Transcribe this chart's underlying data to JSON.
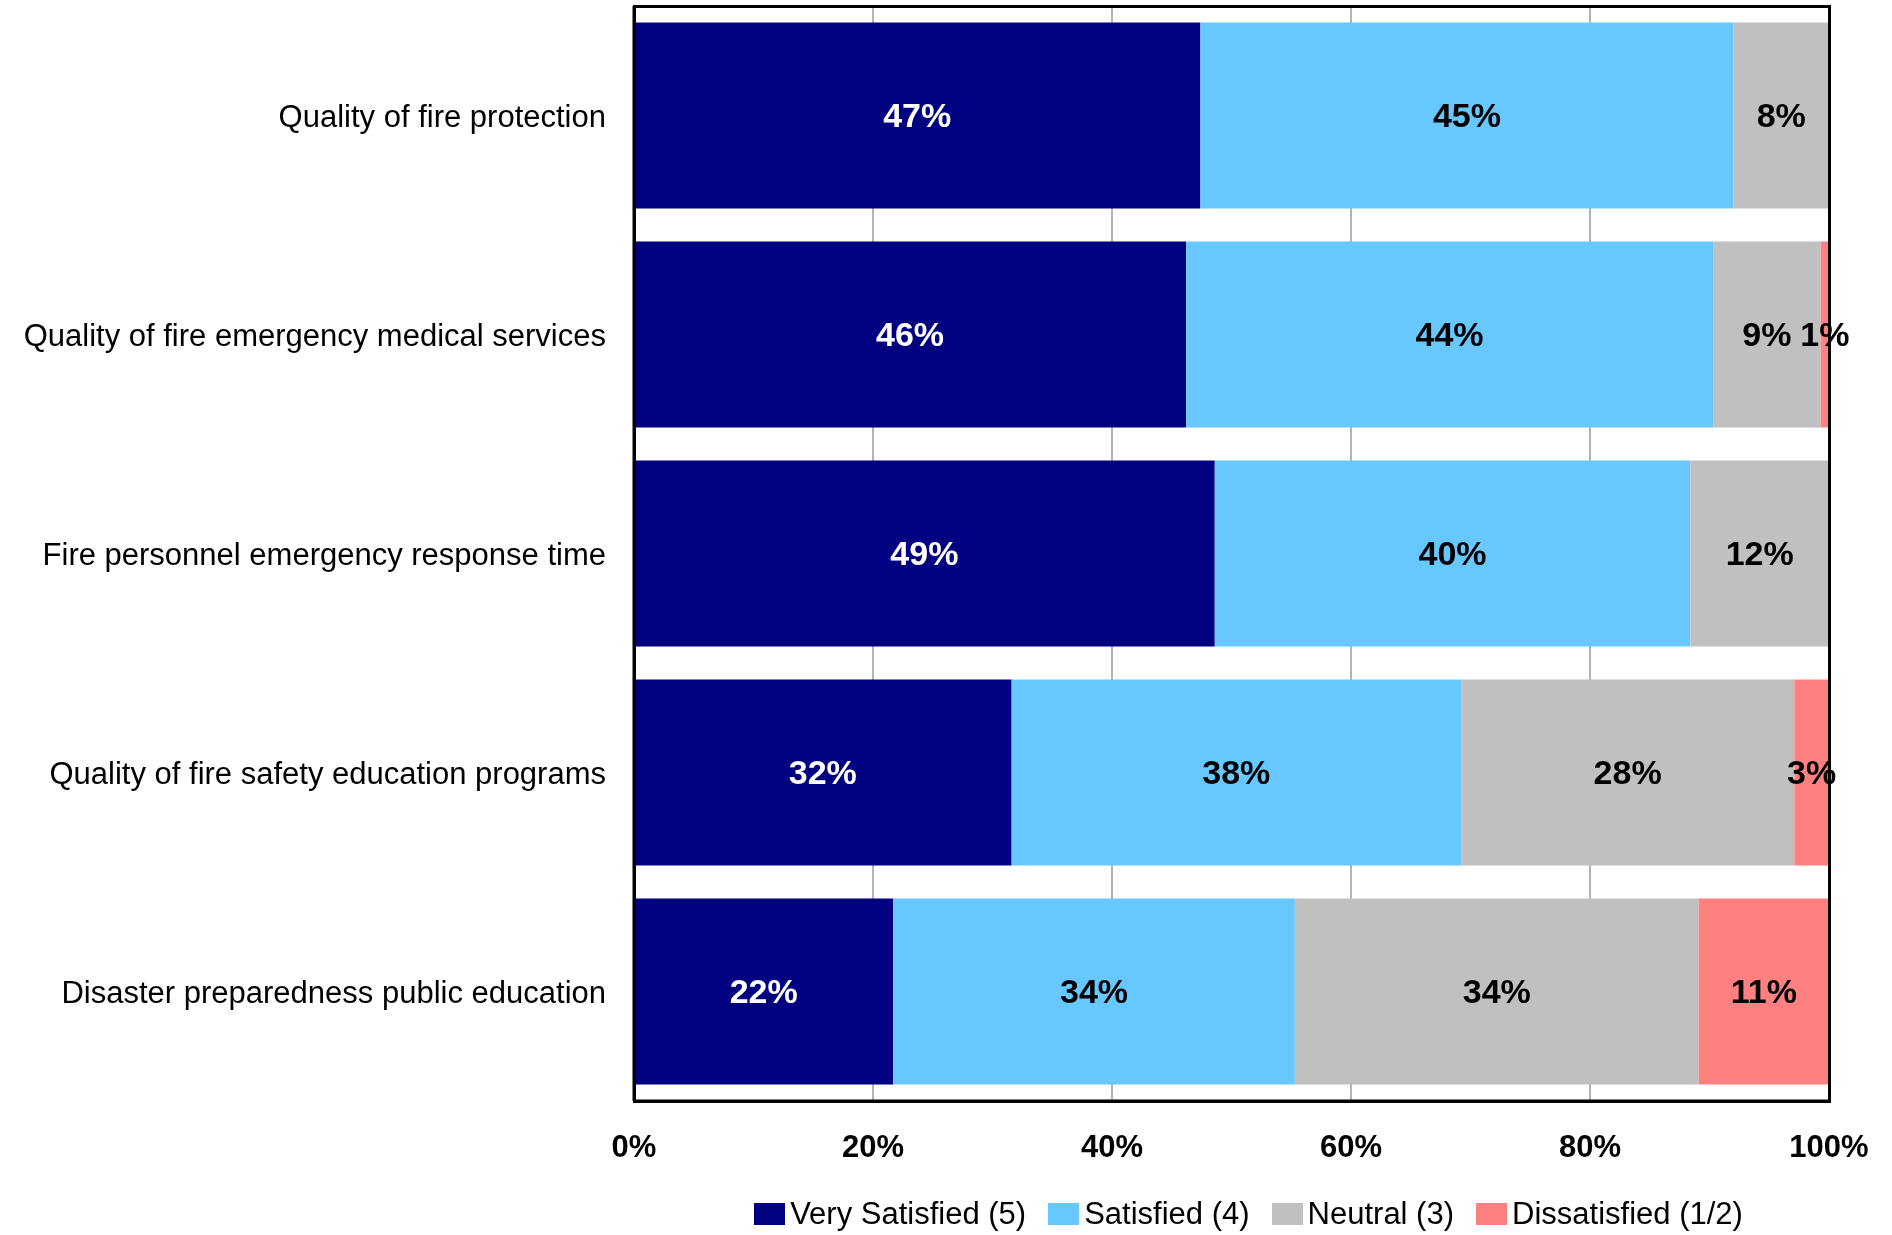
{
  "chart_data": {
    "type": "bar",
    "orientation": "horizontal",
    "stacked": true,
    "categories": [
      "Quality of fire protection",
      "Quality of fire emergency medical services",
      "Fire personnel emergency response time",
      "Quality of fire safety education programs",
      "Disaster preparedness public education"
    ],
    "series": [
      {
        "name": "Very Satisfied (5)",
        "color": "#000080",
        "values": [
          47.4,
          46.2,
          48.6,
          31.6,
          21.7
        ],
        "value_labels": [
          "47%",
          "46%",
          "49%",
          "32%",
          "22%"
        ]
      },
      {
        "name": "Satisfied (4)",
        "color": "#66c8ff",
        "values": [
          44.6,
          44.1,
          39.8,
          37.6,
          33.6
        ],
        "value_labels": [
          "45%",
          "44%",
          "40%",
          "38%",
          "34%"
        ]
      },
      {
        "name": "Neutral (3)",
        "color": "#c0c0c0",
        "values": [
          8.0,
          9.0,
          11.6,
          27.9,
          33.8
        ],
        "value_labels": [
          "8%",
          "9%",
          "12%",
          "28%",
          "34%"
        ]
      },
      {
        "name": "Dissatisfied (1/2)",
        "color": "#ff8080",
        "values": [
          null,
          0.7,
          null,
          2.9,
          10.9
        ],
        "value_labels": [
          null,
          "1%",
          null,
          "3%",
          "11%"
        ]
      }
    ],
    "xlim": [
      0,
      100
    ],
    "xticks": [
      {
        "value": 0,
        "label": "0%"
      },
      {
        "value": 20,
        "label": "20%"
      },
      {
        "value": 40,
        "label": "40%"
      },
      {
        "value": 60,
        "label": "60%"
      },
      {
        "value": 80,
        "label": "80%"
      },
      {
        "value": 100,
        "label": "100%"
      }
    ],
    "grid": "x",
    "legend": "bottom"
  }
}
